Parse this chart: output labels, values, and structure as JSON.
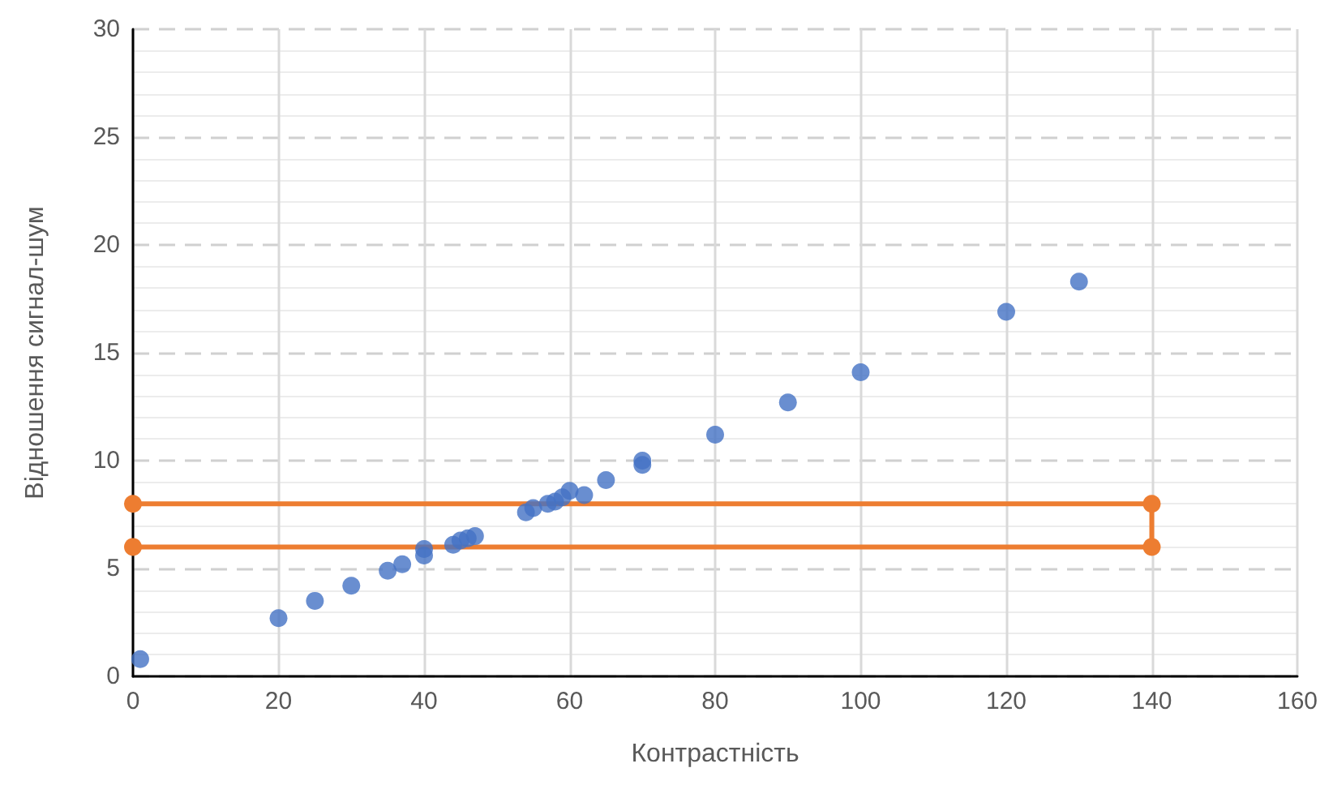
{
  "chart_data": {
    "type": "scatter",
    "xlabel": "Контрастність",
    "ylabel": "Відношення сигнал-шум",
    "xlim": [
      0,
      160
    ],
    "xticks": [
      0,
      20,
      40,
      60,
      80,
      100,
      120,
      140,
      160
    ],
    "ylim": [
      0,
      30
    ],
    "yticks": [
      0,
      5,
      10,
      15,
      20,
      25,
      30
    ],
    "grid": true,
    "marker": "circle",
    "series": [
      {
        "color": "#4472c4",
        "x": [
          1,
          20,
          25,
          30,
          35,
          37,
          40,
          40,
          44,
          45,
          46,
          47,
          54,
          55,
          57,
          58,
          59,
          60,
          62,
          65,
          70,
          70,
          80,
          90,
          100,
          120,
          130
        ],
        "values": [
          0.8,
          2.7,
          3.5,
          4.2,
          4.9,
          5.2,
          5.6,
          5.9,
          6.1,
          6.3,
          6.4,
          6.5,
          7.6,
          7.8,
          8.0,
          8.1,
          8.3,
          8.6,
          8.4,
          9.1,
          9.8,
          10.0,
          11.2,
          12.7,
          14.1,
          16.9,
          18.3
        ]
      },
      {
        "type": "line",
        "color": "#ed7d31",
        "x": [
          0,
          140,
          140,
          0
        ],
        "values": [
          8,
          8,
          6,
          6
        ]
      }
    ]
  }
}
